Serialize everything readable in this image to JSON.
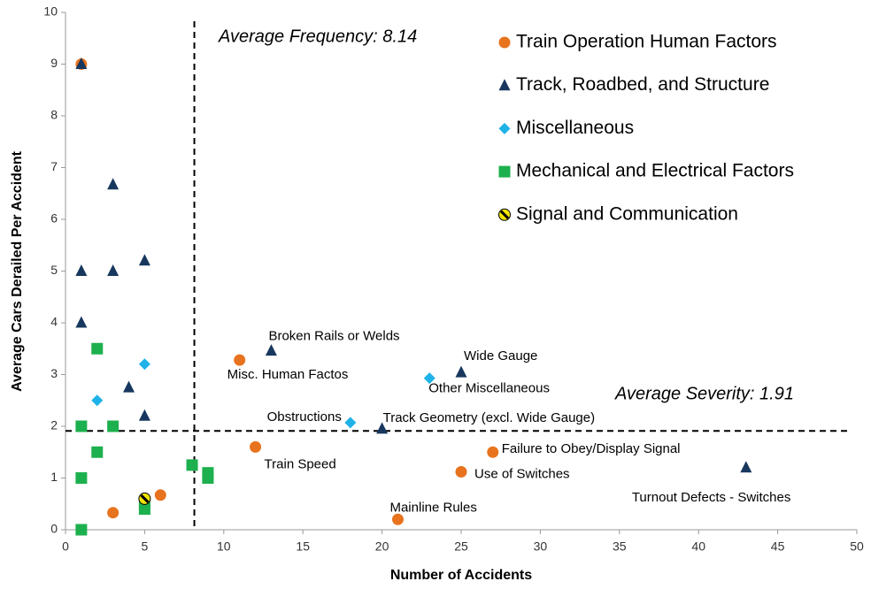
{
  "chart_data": {
    "type": "scatter",
    "x_label": "Number of Accidents",
    "y_label": "Average Cars Derailed Per Accident",
    "xlim": [
      0,
      50
    ],
    "xticks": [
      0,
      5,
      10,
      15,
      20,
      25,
      30,
      35,
      40,
      45,
      50
    ],
    "ylim": [
      0,
      10
    ],
    "yticks": [
      0,
      1,
      2,
      3,
      4,
      5,
      6,
      7,
      8,
      9,
      10
    ],
    "grid": false,
    "legend": "upper right",
    "average_frequency": {
      "value": 8.14,
      "label": "Average Frequency: 8.14"
    },
    "average_severity": {
      "value": 1.91,
      "label": "Average Severity: 1.91"
    },
    "series": [
      {
        "name": "Train Operation Human Factors",
        "color": "#e8731e",
        "marker": "circle",
        "x": [
          1,
          11,
          12,
          27,
          25,
          21,
          3,
          6
        ],
        "values": [
          9,
          3.28,
          1.6,
          1.5,
          1.12,
          0.2,
          0.33,
          0.67
        ],
        "labels": [
          null,
          "Misc. Human Factos",
          "Train Speed",
          "Failure to Obey/Display Signal",
          "Use of Switches",
          "Mainline Rules",
          null,
          null
        ]
      },
      {
        "name": "Track, Roadbed, and Structure",
        "color": "#17375e",
        "marker": "triangle",
        "x": [
          1,
          3,
          1,
          3,
          5,
          1,
          13,
          4,
          25,
          5,
          20,
          43
        ],
        "values": [
          9,
          6.67,
          5,
          5,
          5.2,
          4,
          3.46,
          2.75,
          3.04,
          2.2,
          1.95,
          1.2
        ],
        "labels": [
          null,
          null,
          null,
          null,
          null,
          null,
          "Broken Rails or Welds",
          null,
          "Wide Gauge",
          null,
          "Track Geometry (excl. Wide Gauge)",
          "Turnout Defects - Switches"
        ]
      },
      {
        "name": "Miscellaneous",
        "color": "#1fb2e8",
        "marker": "diamond",
        "x": [
          5,
          2,
          23,
          18
        ],
        "values": [
          3.2,
          2.5,
          2.93,
          2.07
        ],
        "labels": [
          null,
          null,
          "Other Miscellaneous",
          "Obstructions"
        ]
      },
      {
        "name": "Mechanical and Electrical Factors",
        "color": "#1db04e",
        "marker": "square",
        "x": [
          2,
          1,
          3,
          2,
          1,
          8,
          9,
          9,
          5,
          5,
          1
        ],
        "values": [
          3.5,
          2,
          2,
          1.5,
          1,
          1.25,
          1.1,
          1.0,
          0.5,
          0.4,
          0
        ],
        "labels": [
          null,
          null,
          null,
          null,
          null,
          null,
          null,
          null,
          null,
          null,
          null
        ]
      },
      {
        "name": "Signal and Communication",
        "color": "#f2e600",
        "marker": "striped",
        "x": [
          5
        ],
        "values": [
          0.6
        ],
        "labels": [
          null
        ]
      }
    ]
  }
}
